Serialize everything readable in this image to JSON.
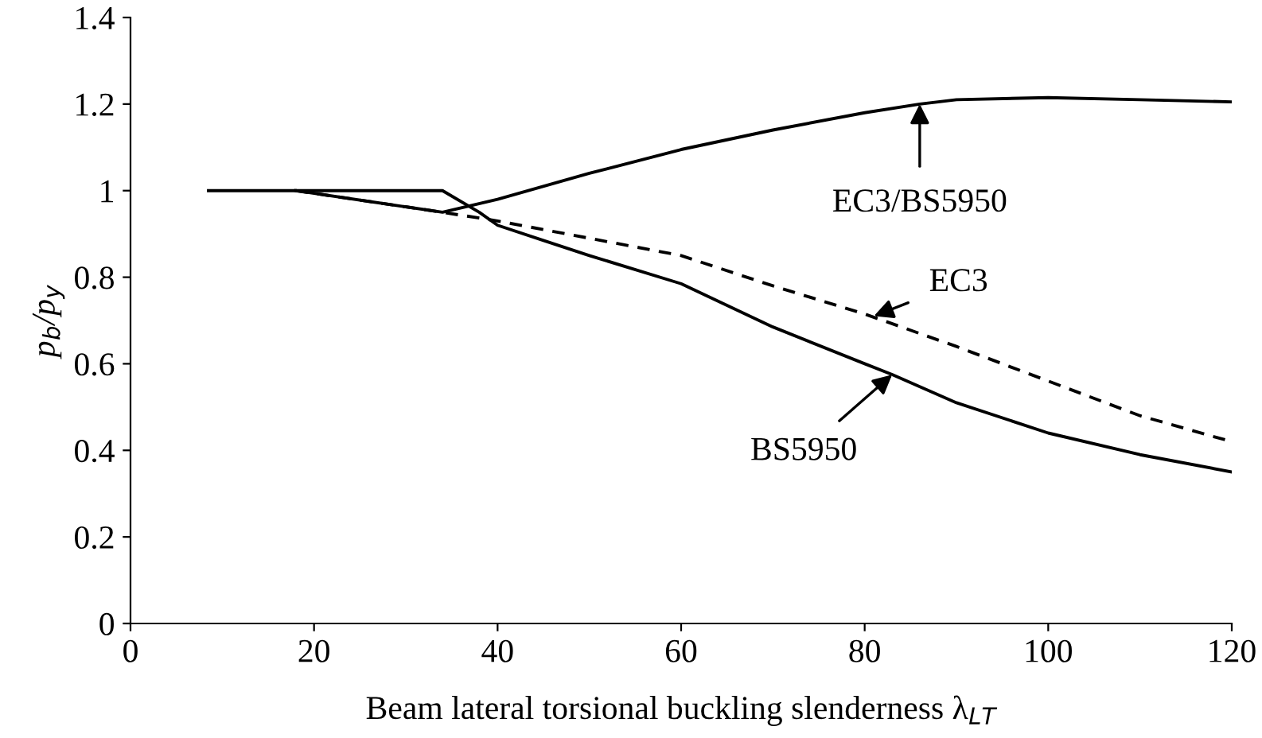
{
  "chart_data": {
    "type": "line",
    "xlabel": "Beam lateral torsional buckling slenderness λ$_{LT}$",
    "ylabel": "p$_{b}$/p$_{y}$",
    "xlim": [
      0,
      120
    ],
    "xticks": [
      0,
      20,
      40,
      60,
      80,
      100,
      120
    ],
    "ylim": [
      0,
      1.4
    ],
    "yticks": [
      0,
      0.2,
      0.4,
      0.6,
      0.8,
      1,
      1.2,
      1.4
    ],
    "grid": false,
    "legend": false,
    "series": [
      {
        "color": "#000000",
        "line_style": "solid",
        "x": [
          8.5,
          18,
          34,
          38,
          40,
          45,
          50,
          60,
          70,
          80,
          83,
          90,
          100,
          110,
          120
        ],
        "values": [
          1.0,
          1.0,
          1.0,
          0.95,
          0.92,
          0.885,
          0.85,
          0.785,
          0.685,
          0.6,
          0.575,
          0.51,
          0.44,
          0.39,
          0.35
        ]
      },
      {
        "color": "#000000",
        "line_style": "dashed",
        "x": [
          18,
          34,
          40,
          50,
          60,
          70,
          80,
          90,
          100,
          110,
          120
        ],
        "values": [
          1.0,
          0.95,
          0.93,
          0.89,
          0.85,
          0.78,
          0.715,
          0.64,
          0.56,
          0.48,
          0.42
        ]
      },
      {
        "color": "#000000",
        "line_style": "solid",
        "x": [
          18,
          34,
          40,
          50,
          60,
          70,
          80,
          86,
          90,
          100,
          110,
          120
        ],
        "values": [
          1.0,
          0.95,
          0.98,
          1.04,
          1.095,
          1.14,
          1.18,
          1.2,
          1.21,
          1.215,
          1.21,
          1.205
        ]
      }
    ],
    "annotations": [
      {
        "text": "EC3/BS5950",
        "x": 86,
        "y": 1.2
      },
      {
        "text": "EC3",
        "x": 81,
        "y": 0.71
      },
      {
        "text": "BS5950",
        "x": 83,
        "y": 0.575
      }
    ]
  }
}
